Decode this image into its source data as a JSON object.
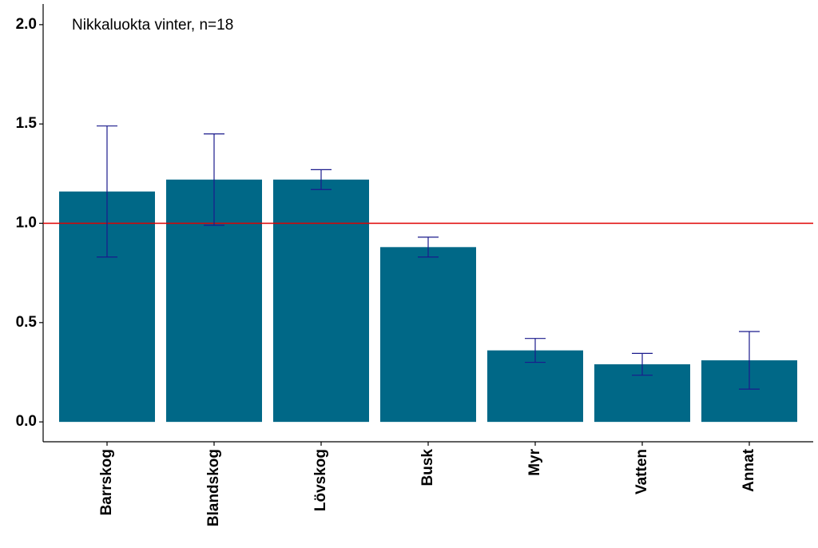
{
  "chart_data": {
    "type": "bar",
    "annotation": "Nikkaluokta vinter, n=18",
    "categories": [
      "Barrskog",
      "Blandskog",
      "Lövskog",
      "Busk",
      "Myr",
      "Vatten",
      "Annat"
    ],
    "values": [
      1.16,
      1.22,
      1.22,
      0.88,
      0.36,
      0.29,
      0.31
    ],
    "errors": [
      0.33,
      0.23,
      0.05,
      0.05,
      0.06,
      0.055,
      0.145
    ],
    "color": "#006887",
    "error_color": "#1a1a8c",
    "hline": 1.0,
    "hline_color": "#e00000",
    "ylim": [
      -0.1,
      2.1
    ],
    "yticks": [
      {
        "value": 0,
        "label": "0.0"
      },
      {
        "value": 0.5,
        "label": "0.5"
      },
      {
        "value": 1,
        "label": "1.0"
      },
      {
        "value": 1.5,
        "label": "1.5"
      },
      {
        "value": 2,
        "label": "2.0"
      }
    ],
    "grid": false
  }
}
